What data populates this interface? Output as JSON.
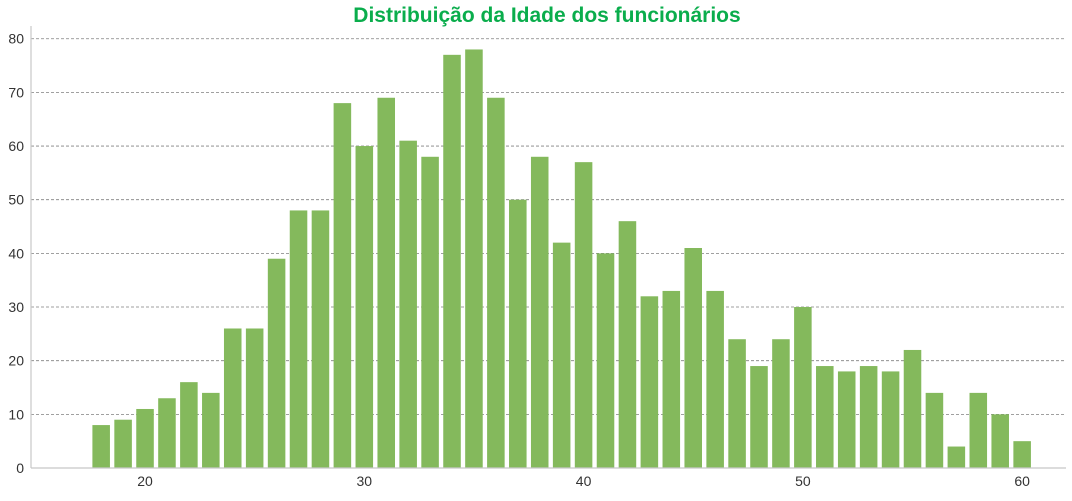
{
  "colors": {
    "title": "#0aad4c",
    "bar": "#84b95c",
    "grid": "#808080",
    "axis": "#c8c8c8",
    "tick_text": "#333333"
  },
  "chart_data": {
    "type": "bar",
    "title": "Distribuição da Idade dos funcionários",
    "xlabel": "",
    "ylabel": "",
    "x": [
      18,
      19,
      20,
      21,
      22,
      23,
      24,
      25,
      26,
      27,
      28,
      29,
      30,
      31,
      32,
      33,
      34,
      35,
      36,
      37,
      38,
      39,
      40,
      41,
      42,
      43,
      44,
      45,
      46,
      47,
      48,
      49,
      50,
      51,
      52,
      53,
      54,
      55,
      56,
      57,
      58,
      59,
      60
    ],
    "values": [
      8,
      9,
      11,
      13,
      16,
      14,
      26,
      26,
      39,
      48,
      48,
      68,
      60,
      69,
      61,
      58,
      77,
      78,
      69,
      50,
      58,
      42,
      57,
      40,
      46,
      32,
      33,
      41,
      33,
      24,
      19,
      24,
      30,
      19,
      18,
      19,
      18,
      22,
      14,
      4,
      14,
      10,
      5
    ],
    "xlim": [
      14.8,
      62.0
    ],
    "ylim": [
      0,
      82
    ],
    "xticks": [
      20,
      30,
      40,
      50,
      60
    ],
    "yticks": [
      0,
      10,
      20,
      30,
      40,
      50,
      60,
      70,
      80
    ],
    "grid": "horizontal dashed",
    "legend": "none"
  }
}
